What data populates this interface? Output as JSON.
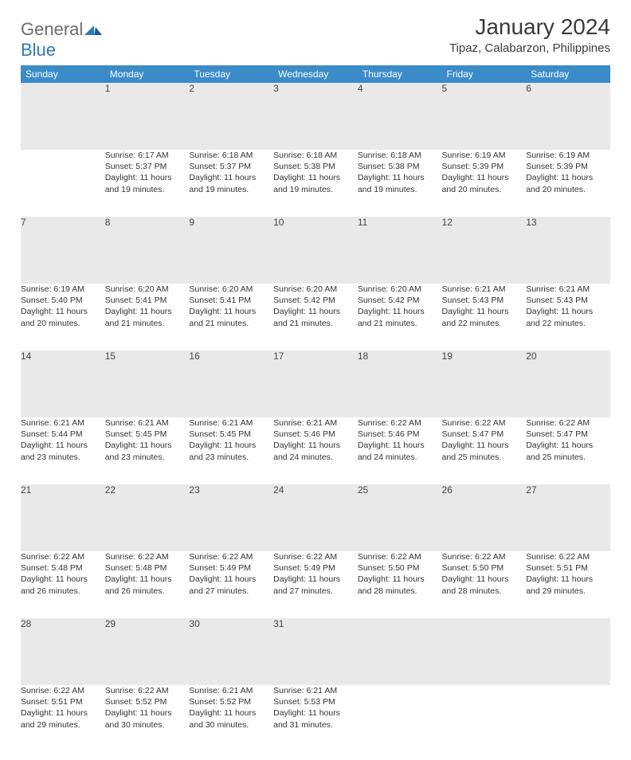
{
  "logo": {
    "word1": "General",
    "word2": "Blue"
  },
  "title": "January 2024",
  "location": "Tipaz, Calabarzon, Philippines",
  "colors": {
    "header_bg": "#3b8bc8",
    "header_text": "#ffffff",
    "daynum_bg": "#e9e9e9",
    "row_border": "#2f5f87",
    "logo_grey": "#6b6b6b",
    "logo_blue": "#2a7ab9",
    "text": "#333333"
  },
  "fonts": {
    "title_size_pt": 21,
    "location_size_pt": 11,
    "header_size_pt": 9,
    "body_size_pt": 8
  },
  "day_headers": [
    "Sunday",
    "Monday",
    "Tuesday",
    "Wednesday",
    "Thursday",
    "Friday",
    "Saturday"
  ],
  "weeks": [
    [
      null,
      {
        "n": "1",
        "sunrise": "Sunrise: 6:17 AM",
        "sunset": "Sunset: 5:37 PM",
        "dl1": "Daylight: 11 hours",
        "dl2": "and 19 minutes."
      },
      {
        "n": "2",
        "sunrise": "Sunrise: 6:18 AM",
        "sunset": "Sunset: 5:37 PM",
        "dl1": "Daylight: 11 hours",
        "dl2": "and 19 minutes."
      },
      {
        "n": "3",
        "sunrise": "Sunrise: 6:18 AM",
        "sunset": "Sunset: 5:38 PM",
        "dl1": "Daylight: 11 hours",
        "dl2": "and 19 minutes."
      },
      {
        "n": "4",
        "sunrise": "Sunrise: 6:18 AM",
        "sunset": "Sunset: 5:38 PM",
        "dl1": "Daylight: 11 hours",
        "dl2": "and 19 minutes."
      },
      {
        "n": "5",
        "sunrise": "Sunrise: 6:19 AM",
        "sunset": "Sunset: 5:39 PM",
        "dl1": "Daylight: 11 hours",
        "dl2": "and 20 minutes."
      },
      {
        "n": "6",
        "sunrise": "Sunrise: 6:19 AM",
        "sunset": "Sunset: 5:39 PM",
        "dl1": "Daylight: 11 hours",
        "dl2": "and 20 minutes."
      }
    ],
    [
      {
        "n": "7",
        "sunrise": "Sunrise: 6:19 AM",
        "sunset": "Sunset: 5:40 PM",
        "dl1": "Daylight: 11 hours",
        "dl2": "and 20 minutes."
      },
      {
        "n": "8",
        "sunrise": "Sunrise: 6:20 AM",
        "sunset": "Sunset: 5:41 PM",
        "dl1": "Daylight: 11 hours",
        "dl2": "and 21 minutes."
      },
      {
        "n": "9",
        "sunrise": "Sunrise: 6:20 AM",
        "sunset": "Sunset: 5:41 PM",
        "dl1": "Daylight: 11 hours",
        "dl2": "and 21 minutes."
      },
      {
        "n": "10",
        "sunrise": "Sunrise: 6:20 AM",
        "sunset": "Sunset: 5:42 PM",
        "dl1": "Daylight: 11 hours",
        "dl2": "and 21 minutes."
      },
      {
        "n": "11",
        "sunrise": "Sunrise: 6:20 AM",
        "sunset": "Sunset: 5:42 PM",
        "dl1": "Daylight: 11 hours",
        "dl2": "and 21 minutes."
      },
      {
        "n": "12",
        "sunrise": "Sunrise: 6:21 AM",
        "sunset": "Sunset: 5:43 PM",
        "dl1": "Daylight: 11 hours",
        "dl2": "and 22 minutes."
      },
      {
        "n": "13",
        "sunrise": "Sunrise: 6:21 AM",
        "sunset": "Sunset: 5:43 PM",
        "dl1": "Daylight: 11 hours",
        "dl2": "and 22 minutes."
      }
    ],
    [
      {
        "n": "14",
        "sunrise": "Sunrise: 6:21 AM",
        "sunset": "Sunset: 5:44 PM",
        "dl1": "Daylight: 11 hours",
        "dl2": "and 23 minutes."
      },
      {
        "n": "15",
        "sunrise": "Sunrise: 6:21 AM",
        "sunset": "Sunset: 5:45 PM",
        "dl1": "Daylight: 11 hours",
        "dl2": "and 23 minutes."
      },
      {
        "n": "16",
        "sunrise": "Sunrise: 6:21 AM",
        "sunset": "Sunset: 5:45 PM",
        "dl1": "Daylight: 11 hours",
        "dl2": "and 23 minutes."
      },
      {
        "n": "17",
        "sunrise": "Sunrise: 6:21 AM",
        "sunset": "Sunset: 5:46 PM",
        "dl1": "Daylight: 11 hours",
        "dl2": "and 24 minutes."
      },
      {
        "n": "18",
        "sunrise": "Sunrise: 6:22 AM",
        "sunset": "Sunset: 5:46 PM",
        "dl1": "Daylight: 11 hours",
        "dl2": "and 24 minutes."
      },
      {
        "n": "19",
        "sunrise": "Sunrise: 6:22 AM",
        "sunset": "Sunset: 5:47 PM",
        "dl1": "Daylight: 11 hours",
        "dl2": "and 25 minutes."
      },
      {
        "n": "20",
        "sunrise": "Sunrise: 6:22 AM",
        "sunset": "Sunset: 5:47 PM",
        "dl1": "Daylight: 11 hours",
        "dl2": "and 25 minutes."
      }
    ],
    [
      {
        "n": "21",
        "sunrise": "Sunrise: 6:22 AM",
        "sunset": "Sunset: 5:48 PM",
        "dl1": "Daylight: 11 hours",
        "dl2": "and 26 minutes."
      },
      {
        "n": "22",
        "sunrise": "Sunrise: 6:22 AM",
        "sunset": "Sunset: 5:48 PM",
        "dl1": "Daylight: 11 hours",
        "dl2": "and 26 minutes."
      },
      {
        "n": "23",
        "sunrise": "Sunrise: 6:22 AM",
        "sunset": "Sunset: 5:49 PM",
        "dl1": "Daylight: 11 hours",
        "dl2": "and 27 minutes."
      },
      {
        "n": "24",
        "sunrise": "Sunrise: 6:22 AM",
        "sunset": "Sunset: 5:49 PM",
        "dl1": "Daylight: 11 hours",
        "dl2": "and 27 minutes."
      },
      {
        "n": "25",
        "sunrise": "Sunrise: 6:22 AM",
        "sunset": "Sunset: 5:50 PM",
        "dl1": "Daylight: 11 hours",
        "dl2": "and 28 minutes."
      },
      {
        "n": "26",
        "sunrise": "Sunrise: 6:22 AM",
        "sunset": "Sunset: 5:50 PM",
        "dl1": "Daylight: 11 hours",
        "dl2": "and 28 minutes."
      },
      {
        "n": "27",
        "sunrise": "Sunrise: 6:22 AM",
        "sunset": "Sunset: 5:51 PM",
        "dl1": "Daylight: 11 hours",
        "dl2": "and 29 minutes."
      }
    ],
    [
      {
        "n": "28",
        "sunrise": "Sunrise: 6:22 AM",
        "sunset": "Sunset: 5:51 PM",
        "dl1": "Daylight: 11 hours",
        "dl2": "and 29 minutes."
      },
      {
        "n": "29",
        "sunrise": "Sunrise: 6:22 AM",
        "sunset": "Sunset: 5:52 PM",
        "dl1": "Daylight: 11 hours",
        "dl2": "and 30 minutes."
      },
      {
        "n": "30",
        "sunrise": "Sunrise: 6:21 AM",
        "sunset": "Sunset: 5:52 PM",
        "dl1": "Daylight: 11 hours",
        "dl2": "and 30 minutes."
      },
      {
        "n": "31",
        "sunrise": "Sunrise: 6:21 AM",
        "sunset": "Sunset: 5:53 PM",
        "dl1": "Daylight: 11 hours",
        "dl2": "and 31 minutes."
      },
      null,
      null,
      null
    ]
  ]
}
